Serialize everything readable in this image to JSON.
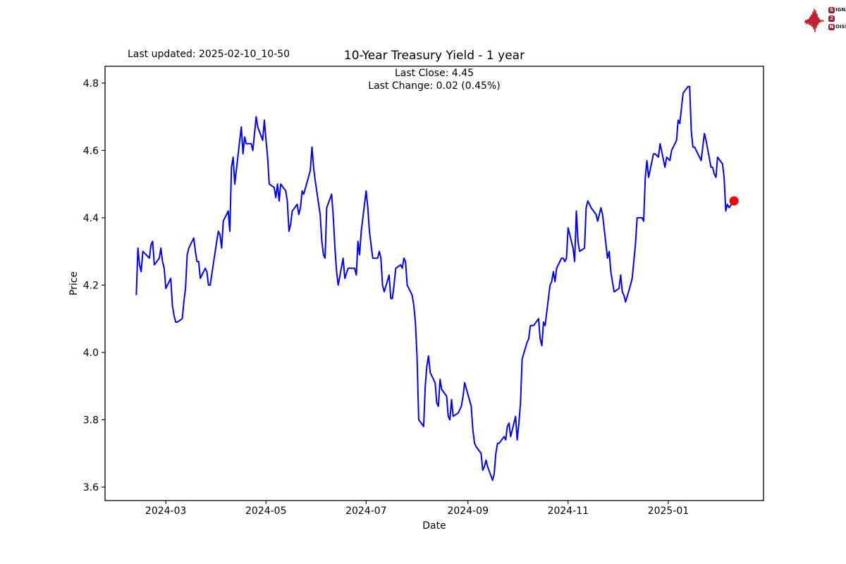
{
  "header": {
    "last_updated": "Last updated: 2025-02-10_10-50",
    "title": "10-Year Treasury Yield - 1 year",
    "subtitle_close": "Last Close: 4.45",
    "subtitle_change": "Last Change: 0.02 (0.45%)"
  },
  "logo": {
    "rows": [
      {
        "badge": "S",
        "rest": "IGNAL"
      },
      {
        "badge": "2",
        "rest": ""
      },
      {
        "badge": "N",
        "rest": "OISE"
      }
    ],
    "badge_color": "#9c1b2c",
    "waveform_color": "#c42030"
  },
  "chart_data": {
    "type": "line",
    "title": "10-Year Treasury Yield - 1 year",
    "xlabel": "Date",
    "ylabel": "Price",
    "legend": "none",
    "grid": false,
    "line_color": "#0000ff",
    "last_point_color": "#ff0000",
    "last_close": 4.45,
    "last_change": "0.02 (0.45%)",
    "ylim": [
      3.56,
      4.85
    ],
    "xlim": [
      "2024-01-24",
      "2025-02-28"
    ],
    "y_ticks": [
      3.6,
      3.8,
      4.0,
      4.2,
      4.4,
      4.6,
      4.8
    ],
    "x_ticks": [
      {
        "label": "2024-03",
        "date": "2024-03-01"
      },
      {
        "label": "2024-05",
        "date": "2024-05-01"
      },
      {
        "label": "2024-07",
        "date": "2024-07-01"
      },
      {
        "label": "2024-09",
        "date": "2024-09-01"
      },
      {
        "label": "2024-11",
        "date": "2024-11-01"
      },
      {
        "label": "2025-01",
        "date": "2025-01-01"
      }
    ],
    "series": [
      {
        "name": "10-Year Treasury Yield",
        "points": [
          [
            "2024-02-12",
            4.17
          ],
          [
            "2024-02-13",
            4.31
          ],
          [
            "2024-02-14",
            4.26
          ],
          [
            "2024-02-15",
            4.24
          ],
          [
            "2024-02-16",
            4.3
          ],
          [
            "2024-02-20",
            4.28
          ],
          [
            "2024-02-21",
            4.32
          ],
          [
            "2024-02-22",
            4.33
          ],
          [
            "2024-02-23",
            4.26
          ],
          [
            "2024-02-26",
            4.28
          ],
          [
            "2024-02-27",
            4.31
          ],
          [
            "2024-02-28",
            4.27
          ],
          [
            "2024-02-29",
            4.25
          ],
          [
            "2024-03-01",
            4.19
          ],
          [
            "2024-03-04",
            4.22
          ],
          [
            "2024-03-05",
            4.14
          ],
          [
            "2024-03-06",
            4.11
          ],
          [
            "2024-03-07",
            4.09
          ],
          [
            "2024-03-08",
            4.09
          ],
          [
            "2024-03-11",
            4.1
          ],
          [
            "2024-03-12",
            4.15
          ],
          [
            "2024-03-13",
            4.19
          ],
          [
            "2024-03-14",
            4.29
          ],
          [
            "2024-03-15",
            4.31
          ],
          [
            "2024-03-18",
            4.34
          ],
          [
            "2024-03-19",
            4.3
          ],
          [
            "2024-03-20",
            4.27
          ],
          [
            "2024-03-21",
            4.27
          ],
          [
            "2024-03-22",
            4.22
          ],
          [
            "2024-03-25",
            4.25
          ],
          [
            "2024-03-26",
            4.24
          ],
          [
            "2024-03-27",
            4.2
          ],
          [
            "2024-03-28",
            4.2
          ],
          [
            "2024-04-01",
            4.33
          ],
          [
            "2024-04-02",
            4.36
          ],
          [
            "2024-04-03",
            4.35
          ],
          [
            "2024-04-04",
            4.31
          ],
          [
            "2024-04-05",
            4.39
          ],
          [
            "2024-04-08",
            4.42
          ],
          [
            "2024-04-09",
            4.36
          ],
          [
            "2024-04-10",
            4.55
          ],
          [
            "2024-04-11",
            4.58
          ],
          [
            "2024-04-12",
            4.5
          ],
          [
            "2024-04-15",
            4.63
          ],
          [
            "2024-04-16",
            4.67
          ],
          [
            "2024-04-17",
            4.59
          ],
          [
            "2024-04-18",
            4.64
          ],
          [
            "2024-04-19",
            4.62
          ],
          [
            "2024-04-22",
            4.62
          ],
          [
            "2024-04-23",
            4.6
          ],
          [
            "2024-04-24",
            4.65
          ],
          [
            "2024-04-25",
            4.7
          ],
          [
            "2024-04-26",
            4.67
          ],
          [
            "2024-04-29",
            4.63
          ],
          [
            "2024-04-30",
            4.69
          ],
          [
            "2024-05-01",
            4.63
          ],
          [
            "2024-05-02",
            4.58
          ],
          [
            "2024-05-03",
            4.5
          ],
          [
            "2024-05-06",
            4.49
          ],
          [
            "2024-05-07",
            4.46
          ],
          [
            "2024-05-08",
            4.5
          ],
          [
            "2024-05-09",
            4.45
          ],
          [
            "2024-05-10",
            4.5
          ],
          [
            "2024-05-13",
            4.48
          ],
          [
            "2024-05-14",
            4.45
          ],
          [
            "2024-05-15",
            4.36
          ],
          [
            "2024-05-16",
            4.38
          ],
          [
            "2024-05-17",
            4.42
          ],
          [
            "2024-05-20",
            4.44
          ],
          [
            "2024-05-21",
            4.41
          ],
          [
            "2024-05-22",
            4.43
          ],
          [
            "2024-05-23",
            4.48
          ],
          [
            "2024-05-24",
            4.47
          ],
          [
            "2024-05-28",
            4.54
          ],
          [
            "2024-05-29",
            4.61
          ],
          [
            "2024-05-30",
            4.55
          ],
          [
            "2024-05-31",
            4.51
          ],
          [
            "2024-06-03",
            4.41
          ],
          [
            "2024-06-04",
            4.33
          ],
          [
            "2024-06-05",
            4.29
          ],
          [
            "2024-06-06",
            4.28
          ],
          [
            "2024-06-07",
            4.43
          ],
          [
            "2024-06-10",
            4.47
          ],
          [
            "2024-06-11",
            4.4
          ],
          [
            "2024-06-12",
            4.31
          ],
          [
            "2024-06-13",
            4.24
          ],
          [
            "2024-06-14",
            4.2
          ],
          [
            "2024-06-17",
            4.28
          ],
          [
            "2024-06-18",
            4.22
          ],
          [
            "2024-06-20",
            4.25
          ],
          [
            "2024-06-21",
            4.25
          ],
          [
            "2024-06-24",
            4.25
          ],
          [
            "2024-06-25",
            4.23
          ],
          [
            "2024-06-26",
            4.33
          ],
          [
            "2024-06-27",
            4.29
          ],
          [
            "2024-06-28",
            4.36
          ],
          [
            "2024-07-01",
            4.48
          ],
          [
            "2024-07-02",
            4.43
          ],
          [
            "2024-07-03",
            4.36
          ],
          [
            "2024-07-05",
            4.28
          ],
          [
            "2024-07-08",
            4.28
          ],
          [
            "2024-07-09",
            4.3
          ],
          [
            "2024-07-10",
            4.28
          ],
          [
            "2024-07-11",
            4.2
          ],
          [
            "2024-07-12",
            4.18
          ],
          [
            "2024-07-15",
            4.23
          ],
          [
            "2024-07-16",
            4.16
          ],
          [
            "2024-07-17",
            4.16
          ],
          [
            "2024-07-18",
            4.2
          ],
          [
            "2024-07-19",
            4.25
          ],
          [
            "2024-07-22",
            4.26
          ],
          [
            "2024-07-23",
            4.25
          ],
          [
            "2024-07-24",
            4.28
          ],
          [
            "2024-07-25",
            4.27
          ],
          [
            "2024-07-26",
            4.2
          ],
          [
            "2024-07-29",
            4.17
          ],
          [
            "2024-07-30",
            4.14
          ],
          [
            "2024-07-31",
            4.09
          ],
          [
            "2024-08-01",
            3.99
          ],
          [
            "2024-08-02",
            3.8
          ],
          [
            "2024-08-05",
            3.78
          ],
          [
            "2024-08-06",
            3.9
          ],
          [
            "2024-08-07",
            3.96
          ],
          [
            "2024-08-08",
            3.99
          ],
          [
            "2024-08-09",
            3.94
          ],
          [
            "2024-08-12",
            3.91
          ],
          [
            "2024-08-13",
            3.85
          ],
          [
            "2024-08-14",
            3.84
          ],
          [
            "2024-08-15",
            3.92
          ],
          [
            "2024-08-16",
            3.89
          ],
          [
            "2024-08-19",
            3.87
          ],
          [
            "2024-08-20",
            3.81
          ],
          [
            "2024-08-21",
            3.8
          ],
          [
            "2024-08-22",
            3.86
          ],
          [
            "2024-08-23",
            3.81
          ],
          [
            "2024-08-26",
            3.82
          ],
          [
            "2024-08-27",
            3.83
          ],
          [
            "2024-08-28",
            3.84
          ],
          [
            "2024-08-29",
            3.87
          ],
          [
            "2024-08-30",
            3.91
          ],
          [
            "2024-09-03",
            3.84
          ],
          [
            "2024-09-04",
            3.77
          ],
          [
            "2024-09-05",
            3.73
          ],
          [
            "2024-09-06",
            3.72
          ],
          [
            "2024-09-09",
            3.7
          ],
          [
            "2024-09-10",
            3.65
          ],
          [
            "2024-09-11",
            3.66
          ],
          [
            "2024-09-12",
            3.68
          ],
          [
            "2024-09-13",
            3.66
          ],
          [
            "2024-09-16",
            3.62
          ],
          [
            "2024-09-17",
            3.64
          ],
          [
            "2024-09-18",
            3.7
          ],
          [
            "2024-09-19",
            3.73
          ],
          [
            "2024-09-20",
            3.73
          ],
          [
            "2024-09-23",
            3.75
          ],
          [
            "2024-09-24",
            3.74
          ],
          [
            "2024-09-25",
            3.78
          ],
          [
            "2024-09-26",
            3.79
          ],
          [
            "2024-09-27",
            3.75
          ],
          [
            "2024-09-30",
            3.81
          ],
          [
            "2024-10-01",
            3.74
          ],
          [
            "2024-10-02",
            3.79
          ],
          [
            "2024-10-03",
            3.85
          ],
          [
            "2024-10-04",
            3.98
          ],
          [
            "2024-10-07",
            4.03
          ],
          [
            "2024-10-08",
            4.04
          ],
          [
            "2024-10-09",
            4.08
          ],
          [
            "2024-10-10",
            4.08
          ],
          [
            "2024-10-11",
            4.08
          ],
          [
            "2024-10-14",
            4.1
          ],
          [
            "2024-10-15",
            4.04
          ],
          [
            "2024-10-16",
            4.02
          ],
          [
            "2024-10-17",
            4.09
          ],
          [
            "2024-10-18",
            4.08
          ],
          [
            "2024-10-21",
            4.2
          ],
          [
            "2024-10-22",
            4.21
          ],
          [
            "2024-10-23",
            4.24
          ],
          [
            "2024-10-24",
            4.21
          ],
          [
            "2024-10-25",
            4.25
          ],
          [
            "2024-10-28",
            4.28
          ],
          [
            "2024-10-29",
            4.28
          ],
          [
            "2024-10-30",
            4.27
          ],
          [
            "2024-10-31",
            4.28
          ],
          [
            "2024-11-01",
            4.37
          ],
          [
            "2024-11-04",
            4.31
          ],
          [
            "2024-11-05",
            4.27
          ],
          [
            "2024-11-06",
            4.42
          ],
          [
            "2024-11-07",
            4.33
          ],
          [
            "2024-11-08",
            4.3
          ],
          [
            "2024-11-11",
            4.31
          ],
          [
            "2024-11-12",
            4.43
          ],
          [
            "2024-11-13",
            4.45
          ],
          [
            "2024-11-14",
            4.44
          ],
          [
            "2024-11-15",
            4.43
          ],
          [
            "2024-11-18",
            4.41
          ],
          [
            "2024-11-19",
            4.39
          ],
          [
            "2024-11-20",
            4.41
          ],
          [
            "2024-11-21",
            4.43
          ],
          [
            "2024-11-22",
            4.41
          ],
          [
            "2024-11-25",
            4.28
          ],
          [
            "2024-11-26",
            4.3
          ],
          [
            "2024-11-27",
            4.24
          ],
          [
            "2024-11-29",
            4.18
          ],
          [
            "2024-12-02",
            4.19
          ],
          [
            "2024-12-03",
            4.23
          ],
          [
            "2024-12-04",
            4.18
          ],
          [
            "2024-12-05",
            4.17
          ],
          [
            "2024-12-06",
            4.15
          ],
          [
            "2024-12-09",
            4.2
          ],
          [
            "2024-12-10",
            4.22
          ],
          [
            "2024-12-11",
            4.27
          ],
          [
            "2024-12-12",
            4.32
          ],
          [
            "2024-12-13",
            4.4
          ],
          [
            "2024-12-16",
            4.4
          ],
          [
            "2024-12-17",
            4.39
          ],
          [
            "2024-12-18",
            4.52
          ],
          [
            "2024-12-19",
            4.57
          ],
          [
            "2024-12-20",
            4.52
          ],
          [
            "2024-12-23",
            4.59
          ],
          [
            "2024-12-24",
            4.59
          ],
          [
            "2024-12-26",
            4.58
          ],
          [
            "2024-12-27",
            4.62
          ],
          [
            "2024-12-30",
            4.55
          ],
          [
            "2024-12-31",
            4.58
          ],
          [
            "2025-01-02",
            4.57
          ],
          [
            "2025-01-03",
            4.6
          ],
          [
            "2025-01-06",
            4.63
          ],
          [
            "2025-01-07",
            4.69
          ],
          [
            "2025-01-08",
            4.68
          ],
          [
            "2025-01-10",
            4.77
          ],
          [
            "2025-01-13",
            4.79
          ],
          [
            "2025-01-14",
            4.79
          ],
          [
            "2025-01-15",
            4.66
          ],
          [
            "2025-01-16",
            4.61
          ],
          [
            "2025-01-17",
            4.61
          ],
          [
            "2025-01-21",
            4.57
          ],
          [
            "2025-01-22",
            4.61
          ],
          [
            "2025-01-23",
            4.65
          ],
          [
            "2025-01-24",
            4.63
          ],
          [
            "2025-01-27",
            4.55
          ],
          [
            "2025-01-28",
            4.55
          ],
          [
            "2025-01-29",
            4.53
          ],
          [
            "2025-01-30",
            4.52
          ],
          [
            "2025-01-31",
            4.58
          ],
          [
            "2025-02-03",
            4.56
          ],
          [
            "2025-02-04",
            4.52
          ],
          [
            "2025-02-05",
            4.42
          ],
          [
            "2025-02-06",
            4.44
          ],
          [
            "2025-02-07",
            4.43
          ],
          [
            "2025-02-10",
            4.45
          ]
        ]
      }
    ]
  }
}
